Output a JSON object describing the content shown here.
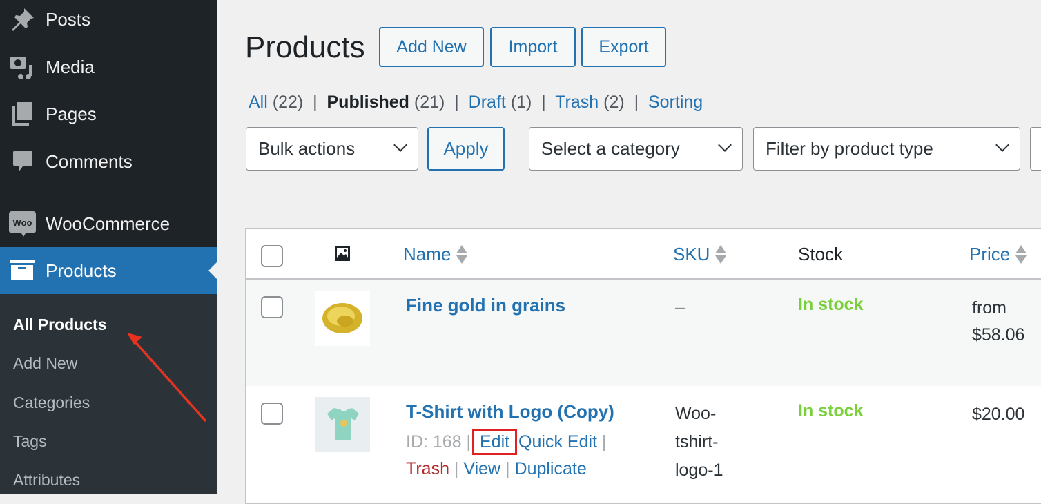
{
  "sidebar": {
    "items": [
      {
        "label": "Posts",
        "icon": "pin-icon"
      },
      {
        "label": "Media",
        "icon": "media-icon"
      },
      {
        "label": "Pages",
        "icon": "pages-icon"
      },
      {
        "label": "Comments",
        "icon": "comment-icon"
      },
      {
        "label": "WooCommerce",
        "icon": "woo-icon",
        "icon_text": "Woo"
      },
      {
        "label": "Products",
        "icon": "archive-icon",
        "active": true
      }
    ],
    "submenu": [
      "All Products",
      "Add New",
      "Categories",
      "Tags",
      "Attributes"
    ]
  },
  "header": {
    "title": "Products",
    "buttons": [
      "Add New",
      "Import",
      "Export"
    ]
  },
  "filters": {
    "all": "All",
    "all_count": "(22)",
    "published": "Published",
    "published_count": "(21)",
    "draft": "Draft",
    "draft_count": "(1)",
    "trash": "Trash",
    "trash_count": "(2)",
    "sorting": "Sorting"
  },
  "toolbar": {
    "bulk": "Bulk actions",
    "apply": "Apply",
    "category": "Select a category",
    "type": "Filter by product type"
  },
  "table": {
    "columns": [
      "Name",
      "SKU",
      "Stock",
      "Price"
    ],
    "rows": [
      {
        "name": "Fine gold in grains",
        "sku": "–",
        "stock": "In stock",
        "price_line1": "from",
        "price_line2": "$58.06"
      },
      {
        "name": "T-Shirt with Logo (Copy)",
        "sku": "Woo-tshirt-logo-1",
        "sku_lines": [
          "Woo-",
          "tshirt-",
          "logo-1"
        ],
        "stock": "In stock",
        "price_line1": "$20.00",
        "id": "ID: 168",
        "actions": [
          "Edit",
          "Quick Edit",
          "Trash",
          "View",
          "Duplicate"
        ]
      }
    ]
  },
  "colors": {
    "sidebar": "#1d2327",
    "accent": "#2271b1",
    "stock": "#7ad03a",
    "trash": "#b32d2e",
    "highlight": "#e32020"
  }
}
